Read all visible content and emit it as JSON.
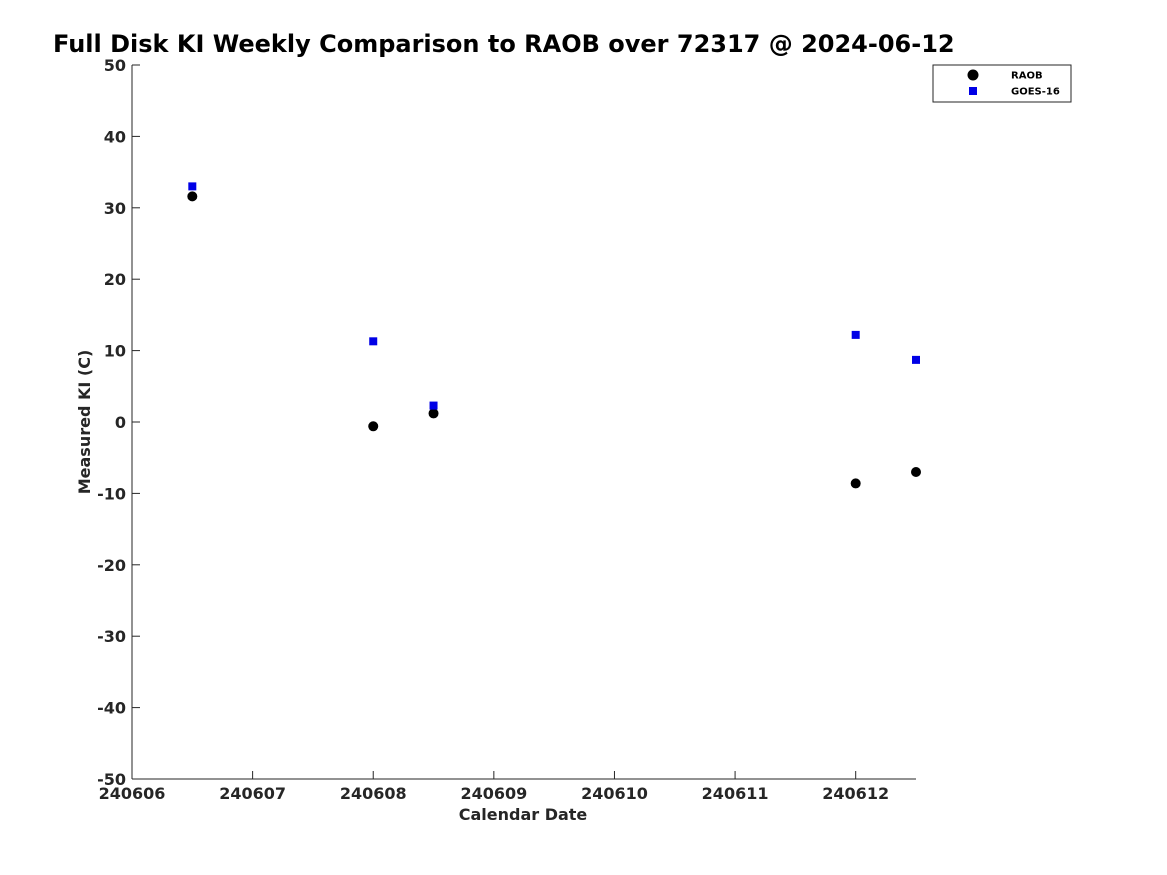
{
  "chart_data": {
    "type": "scatter",
    "title": "Full Disk KI Weekly Comparison to RAOB over 72317 @ 2024-06-12",
    "xlabel": "Calendar Date",
    "ylabel": "Measured KI (C)",
    "x_ticks": [
      "240606",
      "240607",
      "240608",
      "240609",
      "240610",
      "240611",
      "240612"
    ],
    "xlim": [
      "2024-06-06T00:00",
      "2024-06-12T12:00"
    ],
    "ylim": [
      -50,
      50
    ],
    "y_ticks": [
      -50,
      -40,
      -30,
      -20,
      -10,
      0,
      10,
      20,
      30,
      40,
      50
    ],
    "grid": false,
    "legend_position": "top-right",
    "series": [
      {
        "name": "RAOB",
        "marker": "circle",
        "color": "#000000",
        "points": [
          {
            "x": "2024-06-06T12:00",
            "y": 31.6
          },
          {
            "x": "2024-06-08T00:00",
            "y": -0.6
          },
          {
            "x": "2024-06-08T12:00",
            "y": 1.2
          },
          {
            "x": "2024-06-12T00:00",
            "y": -8.6
          },
          {
            "x": "2024-06-12T12:00",
            "y": -7.0
          }
        ]
      },
      {
        "name": "GOES-16",
        "marker": "square",
        "color": "#0000e6",
        "points": [
          {
            "x": "2024-06-06T12:00",
            "y": 33.0
          },
          {
            "x": "2024-06-08T00:00",
            "y": 11.3
          },
          {
            "x": "2024-06-08T12:00",
            "y": 2.3
          },
          {
            "x": "2024-06-12T00:00",
            "y": 12.2
          },
          {
            "x": "2024-06-12T12:00",
            "y": 8.7
          }
        ]
      }
    ]
  }
}
